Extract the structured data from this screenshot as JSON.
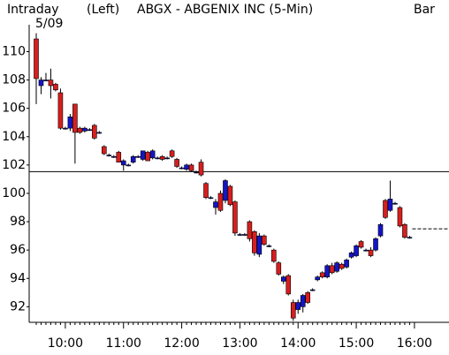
{
  "chart_data": {
    "type": "candlestick",
    "title": "ABGX - ABGENIX INC (5-Min)",
    "period": "Intraday",
    "date": "5/09",
    "axis_side": "(Left)",
    "style": "Bar",
    "categories": [
      null,
      null,
      null,
      null,
      null,
      null,
      "10:00",
      null,
      null,
      null,
      null,
      null,
      null,
      null,
      null,
      null,
      null,
      null,
      "11:00",
      null,
      null,
      null,
      null,
      null,
      null,
      null,
      null,
      null,
      null,
      null,
      "12:00",
      null,
      null,
      null,
      null,
      null,
      null,
      null,
      null,
      null,
      null,
      null,
      "13:00",
      null,
      null,
      null,
      null,
      null,
      null,
      null,
      null,
      null,
      null,
      null,
      "14:00",
      null,
      null,
      null,
      null,
      null,
      null,
      null,
      null,
      null,
      null,
      null,
      "15:00",
      null,
      null,
      null,
      null,
      null,
      null,
      null,
      null,
      null,
      null,
      null,
      "16:00"
    ],
    "open": [
      110.9,
      107.6,
      108.0,
      108.0,
      107.7,
      107.1,
      104.6,
      104.6,
      106.3,
      104.6,
      104.4,
      104.5,
      104.8,
      104.3,
      103.3,
      102.7,
      102.6,
      102.9,
      102.0,
      102.0,
      102.2,
      102.6,
      102.4,
      102.9,
      102.5,
      102.5,
      102.6,
      102.5,
      103.0,
      102.4,
      101.8,
      101.7,
      102.0,
      101.5,
      102.2,
      100.7,
      99.7,
      99.0,
      100.0,
      99.5,
      100.5,
      99.4,
      97.1,
      97.1,
      98.0,
      97.3,
      95.7,
      97.0,
      96.3,
      96.0,
      95.1,
      93.8,
      94.2,
      92.3,
      91.8,
      92.0,
      93.0,
      93.2,
      93.9,
      94.4,
      94.1,
      94.9,
      94.5,
      95.0,
      94.8,
      95.5,
      95.6,
      96.6,
      96.0,
      96.0,
      96.0,
      97.0,
      99.5,
      98.8,
      99.3,
      99.0,
      97.8,
      96.9,
      null
    ],
    "high": [
      111.3,
      108.2,
      108.5,
      108.8,
      107.8,
      107.4,
      104.7,
      105.6,
      106.3,
      104.7,
      104.7,
      104.6,
      104.9,
      104.4,
      103.4,
      102.8,
      102.7,
      103.0,
      102.4,
      102.1,
      102.7,
      102.7,
      103.0,
      103.0,
      103.1,
      102.6,
      102.7,
      102.6,
      103.1,
      102.5,
      101.9,
      102.1,
      102.1,
      101.6,
      102.4,
      100.8,
      99.8,
      99.6,
      100.2,
      101.0,
      100.6,
      99.5,
      97.2,
      97.2,
      98.1,
      97.4,
      97.2,
      97.1,
      96.4,
      96.1,
      95.2,
      94.2,
      94.3,
      92.5,
      92.5,
      92.9,
      93.1,
      93.3,
      94.2,
      94.5,
      95.0,
      95.1,
      95.2,
      95.1,
      95.4,
      95.9,
      96.4,
      96.7,
      96.1,
      96.2,
      96.9,
      97.9,
      99.6,
      100.9,
      99.4,
      99.1,
      97.9,
      97.0,
      null
    ],
    "low": [
      106.3,
      107.0,
      107.9,
      106.7,
      107.2,
      104.5,
      104.5,
      104.4,
      102.1,
      104.2,
      104.3,
      104.4,
      103.8,
      104.2,
      102.7,
      102.6,
      102.5,
      102.2,
      101.6,
      101.9,
      102.1,
      102.5,
      102.3,
      102.3,
      102.4,
      102.4,
      102.3,
      102.4,
      102.5,
      101.8,
      101.7,
      101.6,
      101.5,
      101.4,
      101.2,
      99.6,
      99.6,
      98.5,
      98.7,
      99.3,
      99.1,
      97.0,
      97.0,
      97.0,
      96.6,
      95.6,
      95.5,
      96.3,
      96.2,
      95.1,
      94.2,
      93.6,
      92.8,
      91.0,
      91.5,
      91.6,
      92.2,
      93.1,
      93.8,
      94.0,
      94.0,
      94.3,
      94.4,
      94.6,
      94.7,
      95.4,
      95.5,
      96.1,
      95.9,
      95.5,
      95.9,
      96.9,
      98.2,
      98.7,
      99.2,
      97.6,
      96.8,
      96.8,
      null
    ],
    "close": [
      108.1,
      108.0,
      108.0,
      107.6,
      107.3,
      104.6,
      104.6,
      105.4,
      104.3,
      104.3,
      104.6,
      104.5,
      103.9,
      104.3,
      102.8,
      102.7,
      102.6,
      102.2,
      102.3,
      102.0,
      102.6,
      102.6,
      103.0,
      102.3,
      103.0,
      102.5,
      102.4,
      102.5,
      102.6,
      101.9,
      101.8,
      102.0,
      101.6,
      101.5,
      101.3,
      99.7,
      99.7,
      99.4,
      98.8,
      100.9,
      99.2,
      97.2,
      97.1,
      97.1,
      96.8,
      95.8,
      97.0,
      96.4,
      96.3,
      95.2,
      94.3,
      94.1,
      92.9,
      91.2,
      92.3,
      92.8,
      92.3,
      93.2,
      94.1,
      94.1,
      94.9,
      94.4,
      95.1,
      94.7,
      95.3,
      95.8,
      96.3,
      96.2,
      96.0,
      95.6,
      96.8,
      97.8,
      98.3,
      99.6,
      99.3,
      97.7,
      96.9,
      96.9,
      null
    ],
    "up_color": "#1414c8",
    "down_color": "#d81e1e",
    "reference_lines": [
      {
        "value": 101.53,
        "style": "solid"
      },
      {
        "value": 97.5,
        "style": "dashed"
      }
    ],
    "ylim": [
      90.9,
      111.9
    ],
    "yticks": [
      92,
      94,
      96,
      98,
      100,
      102,
      104,
      106,
      108,
      110
    ]
  }
}
